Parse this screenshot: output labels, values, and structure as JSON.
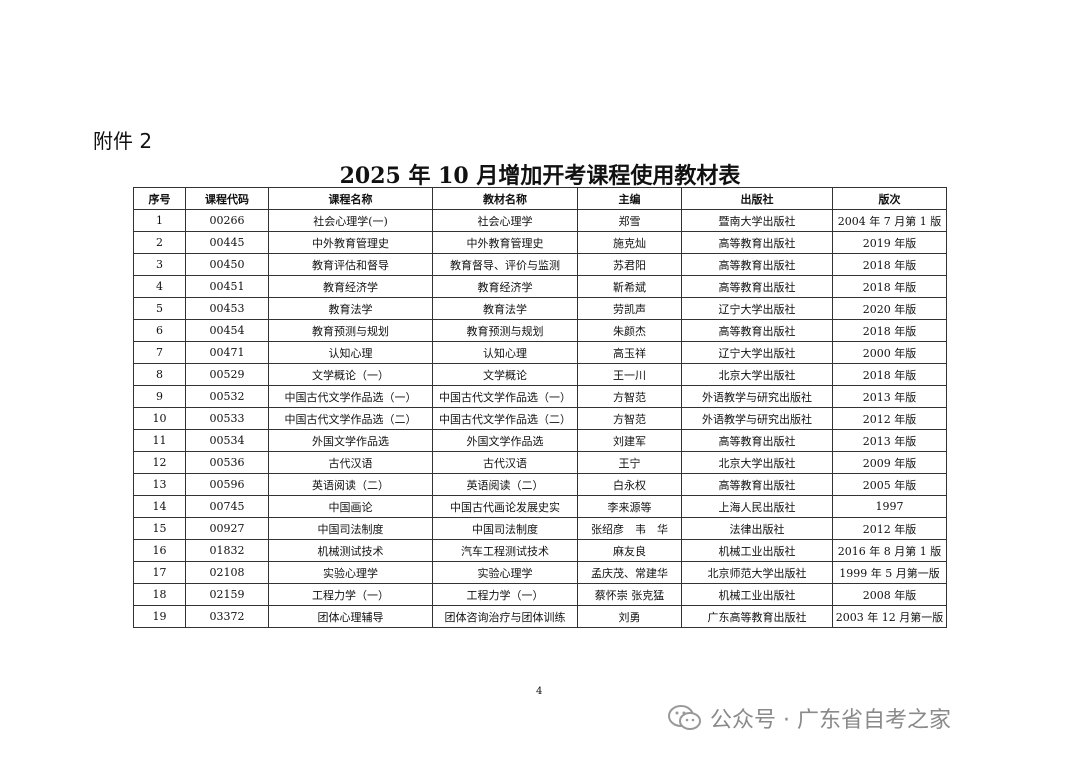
{
  "attachment_label": "附件 2",
  "title": "2025 年 10 月增加开考课程使用教材表",
  "table": {
    "headers": [
      "序号",
      "课程代码",
      "课程名称",
      "教材名称",
      "主编",
      "出版社",
      "版次"
    ],
    "rows": [
      [
        "1",
        "00266",
        "社会心理学(一)",
        "社会心理学",
        "郑雪",
        "暨南大学出版社",
        "2004 年 7 月第 1 版"
      ],
      [
        "2",
        "00445",
        "中外教育管理史",
        "中外教育管理史",
        "施克灿",
        "高等教育出版社",
        "2019 年版"
      ],
      [
        "3",
        "00450",
        "教育评估和督导",
        "教育督导、评价与监测",
        "苏君阳",
        "高等教育出版社",
        "2018 年版"
      ],
      [
        "4",
        "00451",
        "教育经济学",
        "教育经济学",
        "靳希斌",
        "高等教育出版社",
        "2018 年版"
      ],
      [
        "5",
        "00453",
        "教育法学",
        "教育法学",
        "劳凯声",
        "辽宁大学出版社",
        "2020 年版"
      ],
      [
        "6",
        "00454",
        "教育预测与规划",
        "教育预测与规划",
        "朱颜杰",
        "高等教育出版社",
        "2018 年版"
      ],
      [
        "7",
        "00471",
        "认知心理",
        "认知心理",
        "高玉祥",
        "辽宁大学出版社",
        "2000 年版"
      ],
      [
        "8",
        "00529",
        "文学概论（一）",
        "文学概论",
        "王一川",
        "北京大学出版社",
        "2018 年版"
      ],
      [
        "9",
        "00532",
        "中国古代文学作品选（一）",
        "中国古代文学作品选（一）",
        "方智范",
        "外语教学与研究出版社",
        "2013 年版"
      ],
      [
        "10",
        "00533",
        "中国古代文学作品选（二）",
        "中国古代文学作品选（二）",
        "方智范",
        "外语教学与研究出版社",
        "2012 年版"
      ],
      [
        "11",
        "00534",
        "外国文学作品选",
        "外国文学作品选",
        "刘建军",
        "高等教育出版社",
        "2013 年版"
      ],
      [
        "12",
        "00536",
        "古代汉语",
        "古代汉语",
        "王宁",
        "北京大学出版社",
        "2009 年版"
      ],
      [
        "13",
        "00596",
        "英语阅读（二）",
        "英语阅读（二）",
        "白永权",
        "高等教育出版社",
        "2005 年版"
      ],
      [
        "14",
        "00745",
        "中国画论",
        "中国古代画论发展史实",
        "李来源等",
        "上海人民出版社",
        "1997"
      ],
      [
        "15",
        "00927",
        "中国司法制度",
        "中国司法制度",
        "张绍彦　韦　华",
        "法律出版社",
        "2012 年版"
      ],
      [
        "16",
        "01832",
        "机械测试技术",
        "汽车工程测试技术",
        "麻友良",
        "机械工业出版社",
        "2016 年 8 月第 1 版"
      ],
      [
        "17",
        "02108",
        "实验心理学",
        "实验心理学",
        "孟庆茂、常建华",
        "北京师范大学出版社",
        "1999 年 5 月第一版"
      ],
      [
        "18",
        "02159",
        "工程力学（一）",
        "工程力学（一）",
        "蔡怀崇 张克猛",
        "机械工业出版社",
        "2008 年版"
      ],
      [
        "19",
        "03372",
        "团体心理辅导",
        "团体咨询治疗与团体训练",
        "刘勇",
        "广东高等教育出版社",
        "2003 年 12 月第一版"
      ]
    ]
  },
  "page_number": "4",
  "watermark": {
    "text": "公众号 · 广东省自考之家",
    "icon": "wechat-icon"
  }
}
